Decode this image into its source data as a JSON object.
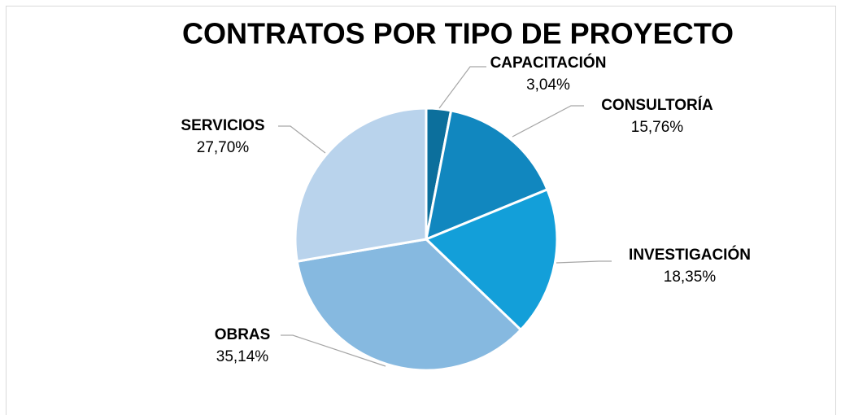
{
  "chart_data": {
    "type": "pie",
    "title": "CONTRATOS POR TIPO DE PROYECTO",
    "categories": [
      "CAPACITACIÓN",
      "CONSULTORÍA",
      "INVESTIGACIÓN",
      "OBRAS",
      "SERVICIOS"
    ],
    "values": [
      3.04,
      15.76,
      18.35,
      35.14,
      27.7
    ],
    "value_labels": [
      "3,04%",
      "15,76%",
      "18,35%",
      "35,14%",
      "27,70%"
    ],
    "colors": [
      "#0c6f9c",
      "#1187bf",
      "#139fd9",
      "#86b9e0",
      "#b9d3ec"
    ]
  }
}
